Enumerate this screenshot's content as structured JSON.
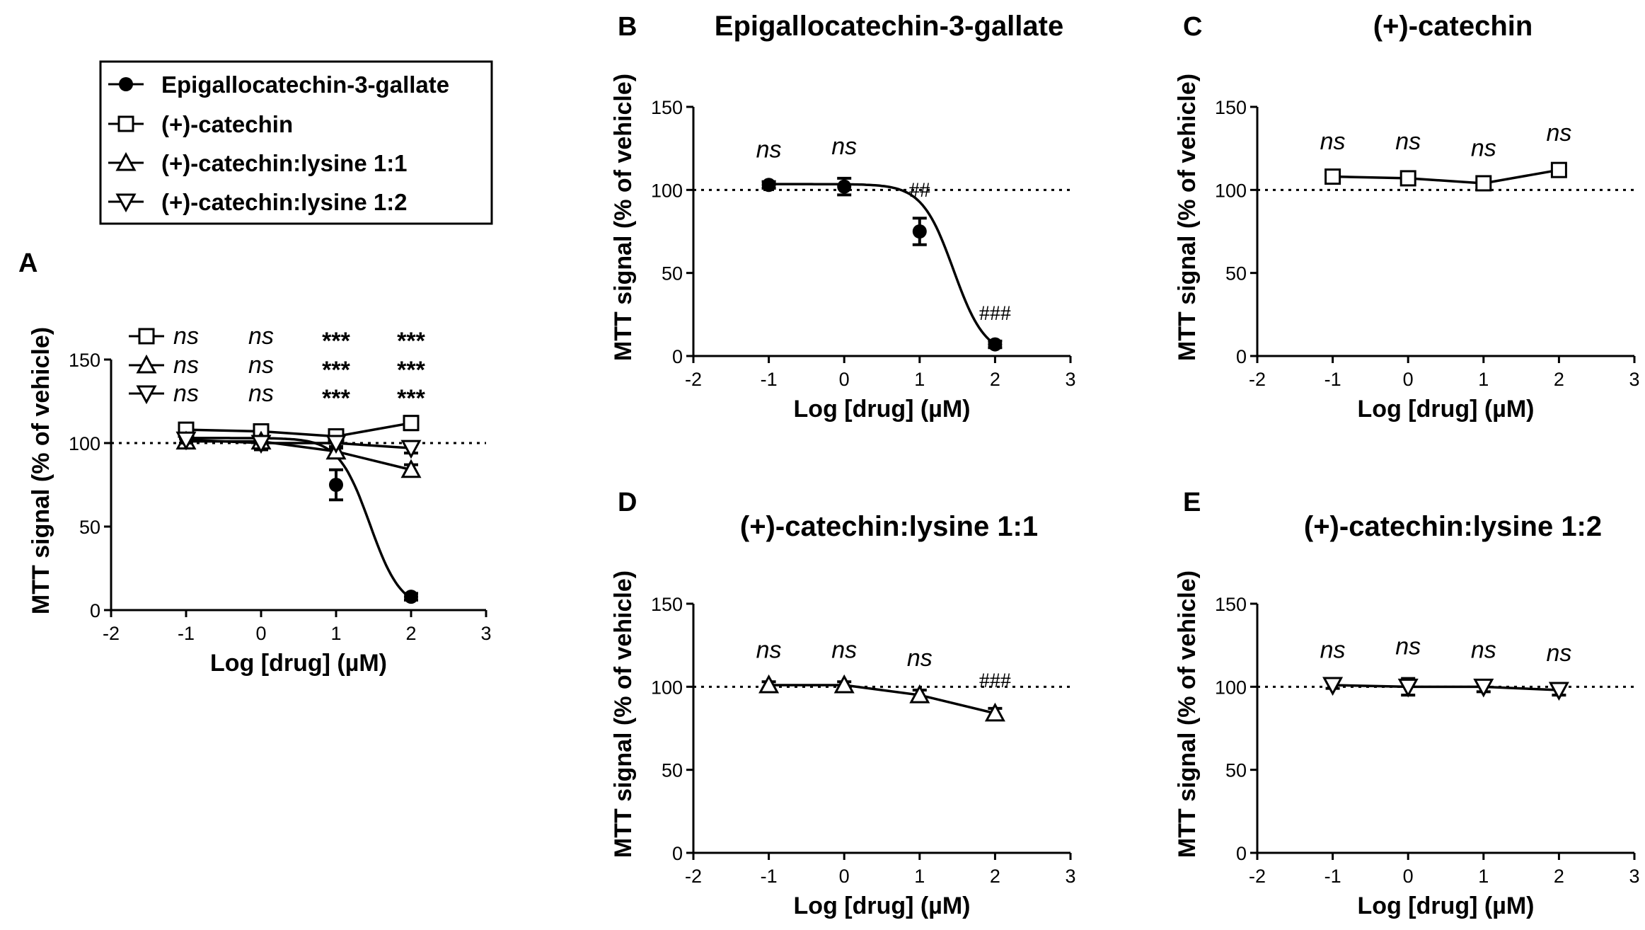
{
  "figure": {
    "legend": [
      {
        "label": "Epigallocatechin-3-gallate",
        "marker": "circle-filled"
      },
      {
        "label": "(+)-catechin",
        "marker": "square-open"
      },
      {
        "label": "(+)-catechin:lysine 1:1",
        "marker": "triangle-up-open"
      },
      {
        "label": "(+)-catechin:lysine 1:2",
        "marker": "triangle-down-open"
      }
    ],
    "x_ticks": [
      "-2",
      "-1",
      "0",
      "1",
      "2",
      "3"
    ],
    "y_ticks": [
      "0",
      "50",
      "100",
      "150"
    ]
  },
  "chart_data": [
    {
      "panel": "A",
      "type": "line",
      "title": "",
      "xlabel": "Log [drug] (µM)",
      "ylabel": "MTT signal (% of vehicle)",
      "xlim": [
        -2,
        3
      ],
      "ylim": [
        0,
        150
      ],
      "reference_line": 100,
      "x": [
        -1,
        0,
        1,
        2
      ],
      "series": [
        {
          "name": "Epigallocatechin-3-gallate",
          "marker": "circle-filled",
          "values": [
            103,
            101,
            75,
            8
          ],
          "errors": [
            3,
            5,
            9,
            2
          ],
          "fit": "sigmoid"
        },
        {
          "name": "(+)-catechin",
          "marker": "square-open",
          "values": [
            108,
            107,
            104,
            112
          ],
          "errors": [
            2,
            3,
            3,
            4
          ]
        },
        {
          "name": "(+)-catechin:lysine 1:1",
          "marker": "triangle-up-open",
          "values": [
            101,
            101,
            95,
            84
          ],
          "errors": [
            2,
            3,
            3,
            3
          ]
        },
        {
          "name": "(+)-catechin:lysine 1:2",
          "marker": "triangle-down-open",
          "values": [
            102,
            100,
            100,
            97
          ],
          "errors": [
            2,
            4,
            3,
            3
          ]
        }
      ],
      "significance_rows": [
        {
          "marker": "square-open",
          "labels": [
            "ns",
            "ns",
            "***",
            "***"
          ]
        },
        {
          "marker": "triangle-up-open",
          "labels": [
            "ns",
            "ns",
            "***",
            "***"
          ]
        },
        {
          "marker": "triangle-down-open",
          "labels": [
            "ns",
            "ns",
            "***",
            "***"
          ]
        }
      ]
    },
    {
      "panel": "B",
      "type": "line",
      "title": "Epigallocatechin-3-gallate",
      "xlabel": "Log [drug] (µM)",
      "ylabel": "MTT signal (% of vehicle)",
      "xlim": [
        -2,
        3
      ],
      "ylim": [
        0,
        150
      ],
      "reference_line": 100,
      "x": [
        -1,
        0,
        1,
        2
      ],
      "series": [
        {
          "name": "Epigallocatechin-3-gallate",
          "marker": "circle-filled",
          "values": [
            103,
            102,
            75,
            7
          ],
          "errors": [
            2,
            5,
            8,
            2
          ],
          "fit": "sigmoid"
        }
      ],
      "annotations": [
        "ns",
        "ns",
        "##",
        "###"
      ]
    },
    {
      "panel": "C",
      "type": "line",
      "title": "(+)-catechin",
      "xlabel": "Log [drug] (µM)",
      "ylabel": "MTT signal (% of vehicle)",
      "xlim": [
        -2,
        3
      ],
      "ylim": [
        0,
        150
      ],
      "reference_line": 100,
      "x": [
        -1,
        0,
        1,
        2
      ],
      "series": [
        {
          "name": "(+)-catechin",
          "marker": "square-open",
          "values": [
            108,
            107,
            104,
            112
          ],
          "errors": [
            2,
            3,
            2,
            3
          ]
        }
      ],
      "annotations": [
        "ns",
        "ns",
        "ns",
        "ns"
      ]
    },
    {
      "panel": "D",
      "type": "line",
      "title": "(+)-catechin:lysine 1:1",
      "xlabel": "Log [drug] (µM)",
      "ylabel": "MTT signal (% of vehicle)",
      "xlim": [
        -2,
        3
      ],
      "ylim": [
        0,
        150
      ],
      "reference_line": 100,
      "x": [
        -1,
        0,
        1,
        2
      ],
      "series": [
        {
          "name": "(+)-catechin:lysine 1:1",
          "marker": "triangle-up-open",
          "values": [
            101,
            101,
            95,
            84
          ],
          "errors": [
            2,
            2,
            3,
            3
          ]
        }
      ],
      "annotations": [
        "ns",
        "ns",
        "ns",
        "###"
      ]
    },
    {
      "panel": "E",
      "type": "line",
      "title": "(+)-catechin:lysine 1:2",
      "xlabel": "Log [drug] (µM)",
      "ylabel": "MTT signal (% of vehicle)",
      "xlim": [
        -2,
        3
      ],
      "ylim": [
        0,
        150
      ],
      "reference_line": 100,
      "x": [
        -1,
        0,
        1,
        2
      ],
      "series": [
        {
          "name": "(+)-catechin:lysine 1:2",
          "marker": "triangle-down-open",
          "values": [
            101,
            100,
            100,
            98
          ],
          "errors": [
            2,
            5,
            3,
            3
          ]
        }
      ],
      "annotations": [
        "ns",
        "ns",
        "ns",
        "ns"
      ]
    }
  ]
}
